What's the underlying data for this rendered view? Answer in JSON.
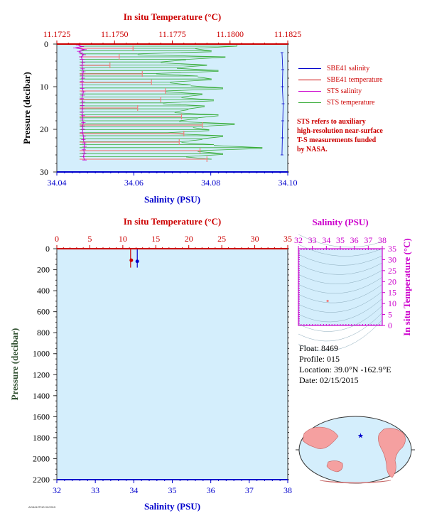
{
  "chart_data": [
    {
      "type": "line",
      "title": "In situ Temperature (°C)",
      "top_axis": {
        "label": "In situ Temperature (°C)",
        "range": [
          11.1725,
          11.1825
        ],
        "ticks": [
          "11.1725",
          "11.1750",
          "11.1775",
          "11.1800",
          "11.1825"
        ],
        "tick_values": [
          11.1725,
          11.175,
          11.1775,
          11.18,
          11.1825
        ]
      },
      "bottom_axis": {
        "label": "Salinity (PSU)",
        "range": [
          34.04,
          34.1
        ],
        "ticks": [
          "34.04",
          "34.06",
          "34.08",
          "34.10"
        ],
        "tick_values": [
          34.04,
          34.06,
          34.08,
          34.1
        ]
      },
      "left_axis": {
        "label": "Pressure (decibar)",
        "range": [
          0,
          30
        ],
        "ticks": [
          "0",
          "10",
          "20",
          "30"
        ],
        "tick_values": [
          0,
          10,
          20,
          30
        ]
      },
      "legend": [
        {
          "name": "SBE41 salinity",
          "color": "#0000cc"
        },
        {
          "name": "SBE41 temperature",
          "color": "#cc0000"
        },
        {
          "name": "STS salinity",
          "color": "#cc00cc"
        },
        {
          "name": "STS temperature",
          "color": "#33aa33"
        }
      ],
      "note": [
        "STS refers to auxiliary",
        "high-resolution near-surface",
        "T-S measurements funded",
        "by NASA."
      ],
      "series": [
        {
          "name": "STS salinity",
          "pressure": [
            0.2,
            0.6,
            0.9,
            1.3,
            1.7,
            2.1,
            2.5,
            3,
            3.6,
            4.3,
            5,
            5.8,
            6.5,
            7.3,
            8,
            8.8,
            9.6,
            10.4,
            11.2,
            12,
            12.8,
            13.6,
            14.4,
            15.2,
            16,
            16.8,
            17.6,
            18.4,
            19.2,
            20,
            20.8,
            21.6,
            22.4,
            23.2,
            24,
            24.8,
            25.6,
            26.4,
            27.2
          ],
          "salinity": [
            34.0455,
            34.0465,
            34.0448,
            34.0472,
            34.0458,
            34.0462,
            34.047,
            34.0463,
            34.0466,
            34.0468,
            34.0465,
            34.0467,
            34.0469,
            34.0466,
            34.0468,
            34.0465,
            34.0467,
            34.0466,
            34.0469,
            34.0467,
            34.0465,
            34.0468,
            34.0466,
            34.0467,
            34.0465,
            34.0468,
            34.0466,
            34.0469,
            34.0467,
            34.0468,
            34.0466,
            34.047,
            34.0469,
            34.0471,
            34.0472,
            34.047,
            34.0471,
            34.0469,
            34.0472
          ]
        },
        {
          "name": "STS temperature",
          "pressure": [
            0.5,
            1,
            1.6,
            2.3,
            3,
            3.6,
            4.2,
            4.9,
            5.5,
            6.2,
            6.9,
            7.5,
            8.2,
            8.9,
            9.6,
            10.3,
            11,
            11.7,
            12.4,
            13.1,
            13.8,
            14.5,
            15.2,
            15.9,
            16.6,
            17.3,
            18,
            18.7,
            19.4,
            20.1,
            20.8,
            21.5,
            22.2,
            22.9,
            23.6,
            24.3,
            25,
            25.7,
            26.4,
            27
          ],
          "temperature": [
            11.1803,
            11.1785,
            11.1792,
            11.176,
            11.1798,
            11.1781,
            11.177,
            11.179,
            11.1777,
            11.1795,
            11.1768,
            11.1786,
            11.1792,
            11.1774,
            11.1783,
            11.1797,
            11.1772,
            11.1788,
            11.1779,
            11.1793,
            11.1771,
            11.1789,
            11.1782,
            11.1776,
            11.1795,
            11.1786,
            11.1778,
            11.1802,
            11.1784,
            11.1791,
            11.1773,
            11.1797,
            11.1788,
            11.1779,
            11.1793,
            11.1814,
            11.1786,
            11.1797,
            11.1781,
            11.1792
          ]
        },
        {
          "name": "SBE41 temperature",
          "pressure": [
            1,
            3,
            5,
            7,
            9,
            11,
            13,
            15,
            17,
            19,
            21,
            23,
            25,
            27
          ],
          "temperature": [
            11.1758,
            11.1752,
            11.1748,
            11.1762,
            11.1766,
            11.1772,
            11.177,
            11.176,
            11.1779,
            11.1788,
            11.178,
            11.1778,
            11.1787,
            11.179
          ]
        },
        {
          "name": "SBE41 salinity",
          "pressure": [
            2,
            6,
            10,
            14,
            18,
            22,
            26
          ],
          "salinity": [
            34.0985,
            34.0987,
            34.0986,
            34.0988,
            34.0987,
            34.0986,
            34.0985
          ]
        }
      ]
    },
    {
      "type": "line",
      "top_axis": {
        "label": "In situ Temperature (°C)",
        "range": [
          0,
          35
        ],
        "ticks": [
          "0",
          "5",
          "10",
          "15",
          "20",
          "25",
          "30",
          "35"
        ],
        "tick_values": [
          0,
          5,
          10,
          15,
          20,
          25,
          30,
          35
        ]
      },
      "bottom_axis": {
        "label": "Salinity (PSU)",
        "range": [
          32,
          38
        ],
        "ticks": [
          "32",
          "33",
          "34",
          "35",
          "36",
          "37",
          "38"
        ],
        "tick_values": [
          32,
          33,
          34,
          35,
          36,
          37,
          38
        ]
      },
      "left_axis": {
        "label": "Pressure (decibar)",
        "range": [
          0,
          2200
        ],
        "ticks": [
          "0",
          "200",
          "400",
          "600",
          "800",
          "1000",
          "1200",
          "1400",
          "1600",
          "1800",
          "2000",
          "2200"
        ],
        "tick_values": [
          0,
          200,
          400,
          600,
          800,
          1000,
          1200,
          1400,
          1600,
          1800,
          2000,
          2200
        ]
      },
      "series": [
        {
          "name": "SBE41 salinity",
          "points": [
            [
              34.09,
              0
            ],
            [
              34.09,
              180
            ]
          ]
        },
        {
          "name": "SBE41 temperature",
          "points": [
            [
              11.18,
              0
            ],
            [
              11.18,
              180
            ]
          ]
        }
      ],
      "markers": [
        {
          "name": "salinity marker",
          "salinity": 34.09,
          "pressure": 120
        },
        {
          "name": "temperature marker",
          "temperature": 11.18,
          "pressure": 110
        }
      ]
    },
    {
      "type": "scatter",
      "top_axis": {
        "label": "Salinity (PSU)",
        "range": [
          32,
          38
        ],
        "ticks": [
          "32",
          "33",
          "34",
          "35",
          "36",
          "37",
          "38"
        ],
        "tick_values": [
          32,
          33,
          34,
          35,
          36,
          37,
          38
        ]
      },
      "right_axis": {
        "label": "In situ Temperature (°C)",
        "range": [
          0,
          35
        ],
        "ticks": [
          "0",
          "5",
          "10",
          "15",
          "20",
          "25",
          "30",
          "35"
        ],
        "tick_values": [
          0,
          5,
          10,
          15,
          20,
          25,
          30,
          35
        ]
      },
      "points": [
        [
          34.09,
          11.18
        ]
      ]
    }
  ],
  "float_info": {
    "float": "Float:  8469",
    "profile": "Profile:  015",
    "location": "Location:  39.0°N  -162.9°E",
    "date": "Date:  02/15/2015"
  },
  "map": {
    "marker_lat": 39.0,
    "marker_lon": -162.9
  },
  "footer_small_text": "AO8412TNS 02/2015"
}
